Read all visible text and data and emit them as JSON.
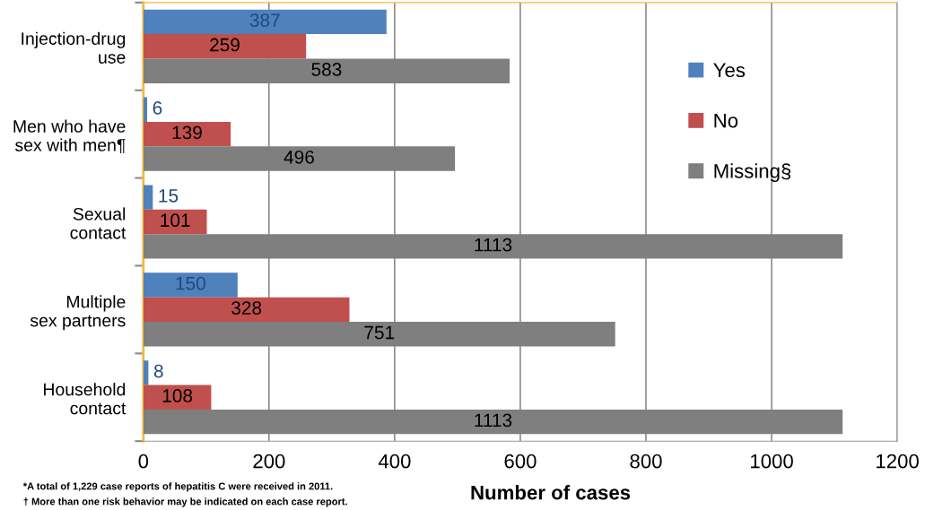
{
  "chart_data": {
    "type": "bar",
    "orientation": "horizontal",
    "xlabel": "Number of cases",
    "categories": [
      "Injection-drug\nuse",
      "Men who have\nsex with men¶",
      "Sexual\ncontact",
      "Multiple\nsex partners",
      "Household\ncontact"
    ],
    "series": [
      {
        "name": "Yes",
        "color": "#4f81bd",
        "values": [
          387,
          6,
          15,
          150,
          8
        ]
      },
      {
        "name": "No",
        "color": "#c0504d",
        "values": [
          259,
          139,
          101,
          328,
          108
        ]
      },
      {
        "name": "Missing§",
        "color": "#7f7f7f",
        "values": [
          583,
          496,
          1113,
          751,
          1113
        ]
      }
    ],
    "xlim": [
      0,
      1200
    ],
    "xticks": [
      0,
      200,
      400,
      600,
      800,
      1000,
      1200
    ],
    "grid": "x",
    "legend": "right",
    "data_labels": true,
    "annotations": [
      "*A total of 1,229 case reports of hepatitis C were received in 2011.",
      "† More than one risk behavior may be indicated on each case report."
    ]
  }
}
